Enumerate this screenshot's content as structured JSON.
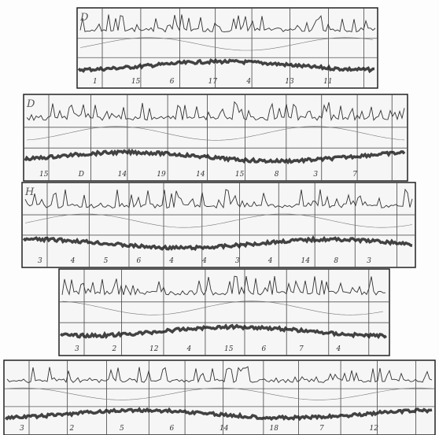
{
  "strips": [
    {
      "label": "D",
      "marks": [
        "1",
        "15",
        "6",
        "17",
        "4",
        "13",
        "11"
      ]
    },
    {
      "label": "D",
      "marks": [
        "15",
        "D",
        "14",
        "19",
        "14",
        "15",
        "8",
        "3",
        "7"
      ]
    },
    {
      "label": "H",
      "marks": [
        "3",
        "4",
        "5",
        "6",
        "4",
        "4",
        "3",
        "4",
        "14",
        "8",
        "3"
      ]
    },
    {
      "label": "",
      "marks": [
        "3",
        "2",
        "12",
        "4",
        "15",
        "6",
        "7",
        "4"
      ]
    },
    {
      "label": "",
      "marks": [
        "3",
        "2",
        "5",
        "6",
        "14",
        "18",
        "7",
        "12"
      ]
    }
  ]
}
